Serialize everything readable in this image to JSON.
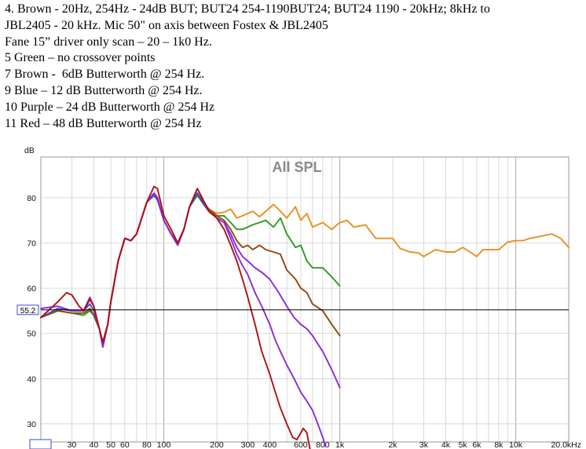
{
  "notes": [
    "4. Brown - 20Hz, 254Hz - 24dB BUT; BUT24 254-1190BUT24; BUT24 1190 - 20kHz; 8kHz to",
    "JBL2405 - 20 kHz. Mic 50\" on axis between Fostex & JBL2405",
    "Fane 15” driver only scan – 20 – 1k0 Hz.",
    "5 Green – no crossover points",
    "7 Brown -  6dB Butterworth @ 254 Hz.",
    "9 Blue – 12 dB Butterworth @ 254 Hz.",
    "10 Purple – 24 dB Butterworth @ 254 Hz",
    "11 Red – 48 dB Butterworth @ 254 Hz"
  ],
  "chart_data": {
    "type": "line",
    "title": "All SPL",
    "ylabel": "dB",
    "xscale": "log",
    "xlim": [
      20,
      20000
    ],
    "ylim": [
      26,
      89
    ],
    "y_ticks": [
      30,
      40,
      50,
      60,
      70,
      80
    ],
    "x_tick_labels": [
      {
        "v": 20,
        "label": "20.0"
      },
      {
        "v": 30,
        "label": "30"
      },
      {
        "v": 40,
        "label": "40"
      },
      {
        "v": 50,
        "label": "50"
      },
      {
        "v": 60,
        "label": "60"
      },
      {
        "v": 80,
        "label": "80"
      },
      {
        "v": 100,
        "label": "100"
      },
      {
        "v": 200,
        "label": "200"
      },
      {
        "v": 300,
        "label": "300"
      },
      {
        "v": 400,
        "label": "400"
      },
      {
        "v": 600,
        "label": "600"
      },
      {
        "v": 800,
        "label": "800"
      },
      {
        "v": 1000,
        "label": "1k"
      },
      {
        "v": 2000,
        "label": "2k"
      },
      {
        "v": 3000,
        "label": "3k"
      },
      {
        "v": 4000,
        "label": "4k"
      },
      {
        "v": 5000,
        "label": "5k"
      },
      {
        "v": 6000,
        "label": "6k"
      },
      {
        "v": 8000,
        "label": "8k"
      },
      {
        "v": 10000,
        "label": "10k"
      },
      {
        "v": 20000,
        "label": "20.0kHz"
      }
    ],
    "reference_line": {
      "value": 55.2,
      "label": "55.2"
    },
    "grid": true,
    "series": [
      {
        "color": "#e8901e",
        "points": [
          [
            20,
            53.5
          ],
          [
            25,
            55
          ],
          [
            30,
            54.5
          ],
          [
            35,
            54.5
          ],
          [
            38,
            55
          ],
          [
            40,
            54
          ],
          [
            43,
            51
          ],
          [
            45,
            48
          ],
          [
            48,
            52
          ],
          [
            50,
            57
          ],
          [
            55,
            66
          ],
          [
            60,
            71
          ],
          [
            65,
            70.5
          ],
          [
            70,
            72
          ],
          [
            80,
            79
          ],
          [
            88,
            81
          ],
          [
            92,
            80
          ],
          [
            100,
            75
          ],
          [
            110,
            72
          ],
          [
            120,
            70
          ],
          [
            130,
            73
          ],
          [
            140,
            78
          ],
          [
            155,
            81
          ],
          [
            165,
            79.5
          ],
          [
            180,
            77.5
          ],
          [
            200,
            76.5
          ],
          [
            220,
            76.8
          ],
          [
            240,
            77.5
          ],
          [
            260,
            75.5
          ],
          [
            280,
            76
          ],
          [
            300,
            76.5
          ],
          [
            320,
            77
          ],
          [
            350,
            75.8
          ],
          [
            380,
            77
          ],
          [
            420,
            78.5
          ],
          [
            460,
            77
          ],
          [
            500,
            75.5
          ],
          [
            560,
            78
          ],
          [
            600,
            75
          ],
          [
            650,
            76.5
          ],
          [
            700,
            73.5
          ],
          [
            800,
            74.5
          ],
          [
            900,
            73
          ],
          [
            1000,
            74.5
          ],
          [
            1100,
            75
          ],
          [
            1200,
            73.5
          ],
          [
            1400,
            74
          ],
          [
            1600,
            71
          ],
          [
            1800,
            71
          ],
          [
            2000,
            71
          ],
          [
            2200,
            68.8
          ],
          [
            2500,
            68
          ],
          [
            2800,
            67.8
          ],
          [
            3000,
            67
          ],
          [
            3500,
            68.5
          ],
          [
            4000,
            68
          ],
          [
            4500,
            68
          ],
          [
            5000,
            69
          ],
          [
            5500,
            68
          ],
          [
            6000,
            67
          ],
          [
            6500,
            68.5
          ],
          [
            7000,
            68.5
          ],
          [
            8000,
            68.5
          ],
          [
            9000,
            70.2
          ],
          [
            10000,
            70.5
          ],
          [
            11000,
            70.5
          ],
          [
            12000,
            71
          ],
          [
            14000,
            71.5
          ],
          [
            16000,
            72
          ],
          [
            18000,
            71
          ],
          [
            20000,
            69
          ]
        ]
      },
      {
        "color": "#2e9a22",
        "points": [
          [
            20,
            53.5
          ],
          [
            25,
            55
          ],
          [
            30,
            54.5
          ],
          [
            35,
            54
          ],
          [
            38,
            55
          ],
          [
            40,
            54
          ],
          [
            43,
            51
          ],
          [
            45,
            48
          ],
          [
            48,
            52
          ],
          [
            50,
            57
          ],
          [
            55,
            66
          ],
          [
            60,
            71
          ],
          [
            65,
            70.5
          ],
          [
            70,
            72
          ],
          [
            80,
            79
          ],
          [
            88,
            80.5
          ],
          [
            92,
            79.5
          ],
          [
            100,
            75
          ],
          [
            110,
            72
          ],
          [
            120,
            70
          ],
          [
            130,
            73
          ],
          [
            140,
            78
          ],
          [
            155,
            80.5
          ],
          [
            165,
            79
          ],
          [
            180,
            77
          ],
          [
            200,
            76
          ],
          [
            220,
            76
          ],
          [
            240,
            74.5
          ],
          [
            260,
            73
          ],
          [
            280,
            73
          ],
          [
            300,
            73.5
          ],
          [
            320,
            74
          ],
          [
            350,
            74.5
          ],
          [
            380,
            75
          ],
          [
            420,
            73.5
          ],
          [
            460,
            75.5
          ],
          [
            500,
            72
          ],
          [
            560,
            69
          ],
          [
            600,
            69.5
          ],
          [
            650,
            66
          ],
          [
            700,
            64.5
          ],
          [
            800,
            64.5
          ],
          [
            900,
            62.5
          ],
          [
            1000,
            60.5
          ]
        ]
      },
      {
        "color": "#8a4a12",
        "points": [
          [
            20,
            53.5
          ],
          [
            25,
            55
          ],
          [
            30,
            54.5
          ],
          [
            35,
            54.5
          ],
          [
            38,
            55.5
          ],
          [
            40,
            54
          ],
          [
            43,
            51
          ],
          [
            45,
            48
          ],
          [
            48,
            52
          ],
          [
            50,
            57
          ],
          [
            55,
            66
          ],
          [
            60,
            71
          ],
          [
            65,
            70.5
          ],
          [
            70,
            72
          ],
          [
            80,
            79
          ],
          [
            88,
            81
          ],
          [
            92,
            80
          ],
          [
            100,
            75
          ],
          [
            110,
            72
          ],
          [
            120,
            70
          ],
          [
            130,
            73
          ],
          [
            140,
            78
          ],
          [
            155,
            81
          ],
          [
            165,
            79.5
          ],
          [
            180,
            77.5
          ],
          [
            200,
            76
          ],
          [
            220,
            75
          ],
          [
            240,
            73
          ],
          [
            260,
            70.5
          ],
          [
            280,
            69
          ],
          [
            300,
            69.5
          ],
          [
            320,
            68.5
          ],
          [
            350,
            69.5
          ],
          [
            380,
            68.5
          ],
          [
            420,
            68
          ],
          [
            460,
            67.5
          ],
          [
            500,
            64
          ],
          [
            560,
            62
          ],
          [
            600,
            60
          ],
          [
            650,
            59
          ],
          [
            700,
            56.5
          ],
          [
            800,
            55
          ],
          [
            900,
            52
          ],
          [
            1000,
            49.5
          ]
        ]
      },
      {
        "color": "#3a4ed0",
        "points": [
          [
            20,
            53.5
          ],
          [
            25,
            55.5
          ],
          [
            30,
            55
          ],
          [
            35,
            55
          ],
          [
            38,
            56.5
          ],
          [
            40,
            55
          ],
          [
            43,
            51
          ],
          [
            45,
            47
          ],
          [
            48,
            52
          ],
          [
            50,
            57
          ],
          [
            55,
            66
          ],
          [
            60,
            71
          ],
          [
            65,
            70.5
          ],
          [
            70,
            72
          ],
          [
            80,
            79
          ],
          [
            88,
            80.5
          ],
          [
            92,
            79.5
          ],
          [
            100,
            75
          ],
          [
            110,
            72
          ],
          [
            120,
            69.5
          ],
          [
            130,
            73
          ],
          [
            140,
            78
          ],
          [
            155,
            81
          ],
          [
            165,
            79
          ],
          [
            180,
            77
          ],
          [
            200,
            75.5
          ],
          [
            220,
            74.5
          ]
        ]
      },
      {
        "color": "#8a2ad8",
        "points": [
          [
            20,
            55.5
          ],
          [
            25,
            56
          ],
          [
            30,
            55
          ],
          [
            35,
            55
          ],
          [
            38,
            58
          ],
          [
            40,
            56
          ],
          [
            43,
            51
          ],
          [
            45,
            47
          ],
          [
            48,
            52
          ],
          [
            50,
            57
          ],
          [
            55,
            66
          ],
          [
            60,
            71
          ],
          [
            65,
            70.5
          ],
          [
            70,
            72
          ],
          [
            80,
            79
          ],
          [
            88,
            81
          ],
          [
            92,
            80
          ],
          [
            100,
            75
          ],
          [
            110,
            72
          ],
          [
            120,
            69.5
          ],
          [
            130,
            73
          ],
          [
            140,
            78
          ],
          [
            155,
            82
          ],
          [
            165,
            80
          ],
          [
            180,
            77
          ],
          [
            200,
            75.5
          ],
          [
            220,
            74.5
          ],
          [
            240,
            72
          ],
          [
            260,
            69
          ],
          [
            280,
            67
          ],
          [
            300,
            66
          ],
          [
            330,
            64.5
          ],
          [
            360,
            63.5
          ],
          [
            400,
            62
          ],
          [
            450,
            59
          ],
          [
            500,
            56
          ],
          [
            550,
            53.5
          ],
          [
            600,
            52
          ],
          [
            650,
            51
          ],
          [
            700,
            49.5
          ],
          [
            800,
            46
          ],
          [
            900,
            42
          ],
          [
            1000,
            38
          ],
          [
            1000,
            38
          ]
        ]
      },
      {
        "color": "#8a2ad8",
        "points": [
          [
            220,
            74.5
          ],
          [
            240,
            71
          ],
          [
            260,
            67.5
          ],
          [
            280,
            65
          ],
          [
            300,
            63
          ],
          [
            330,
            59
          ],
          [
            360,
            56
          ],
          [
            400,
            52
          ],
          [
            430,
            48.5
          ],
          [
            460,
            46
          ],
          [
            500,
            43
          ],
          [
            550,
            40
          ],
          [
            600,
            37
          ],
          [
            650,
            35
          ],
          [
            700,
            33
          ],
          [
            750,
            30
          ],
          [
            800,
            27
          ],
          [
            830,
            25
          ]
        ]
      },
      {
        "color": "#b01010",
        "points": [
          [
            20,
            53.5
          ],
          [
            25,
            57
          ],
          [
            28,
            59
          ],
          [
            30,
            58.5
          ],
          [
            33,
            56
          ],
          [
            35,
            55
          ],
          [
            38,
            57.5
          ],
          [
            40,
            56
          ],
          [
            43,
            51
          ],
          [
            45,
            48
          ],
          [
            48,
            52
          ],
          [
            50,
            57
          ],
          [
            55,
            66
          ],
          [
            60,
            71
          ],
          [
            65,
            70.5
          ],
          [
            70,
            72
          ],
          [
            80,
            79
          ],
          [
            88,
            82.5
          ],
          [
            92,
            82
          ],
          [
            100,
            76
          ],
          [
            110,
            73
          ],
          [
            120,
            70
          ],
          [
            130,
            73
          ],
          [
            140,
            78
          ],
          [
            155,
            82
          ],
          [
            165,
            80
          ],
          [
            180,
            77
          ],
          [
            200,
            75.5
          ],
          [
            220,
            73
          ],
          [
            240,
            69.5
          ],
          [
            260,
            66
          ],
          [
            280,
            62
          ],
          [
            300,
            58
          ],
          [
            330,
            52
          ],
          [
            360,
            46
          ],
          [
            400,
            41
          ],
          [
            430,
            37
          ],
          [
            460,
            33.5
          ],
          [
            500,
            30
          ],
          [
            540,
            27
          ],
          [
            570,
            26.5
          ],
          [
            600,
            28
          ],
          [
            620,
            29
          ],
          [
            650,
            28
          ],
          [
            680,
            24
          ]
        ]
      }
    ]
  }
}
